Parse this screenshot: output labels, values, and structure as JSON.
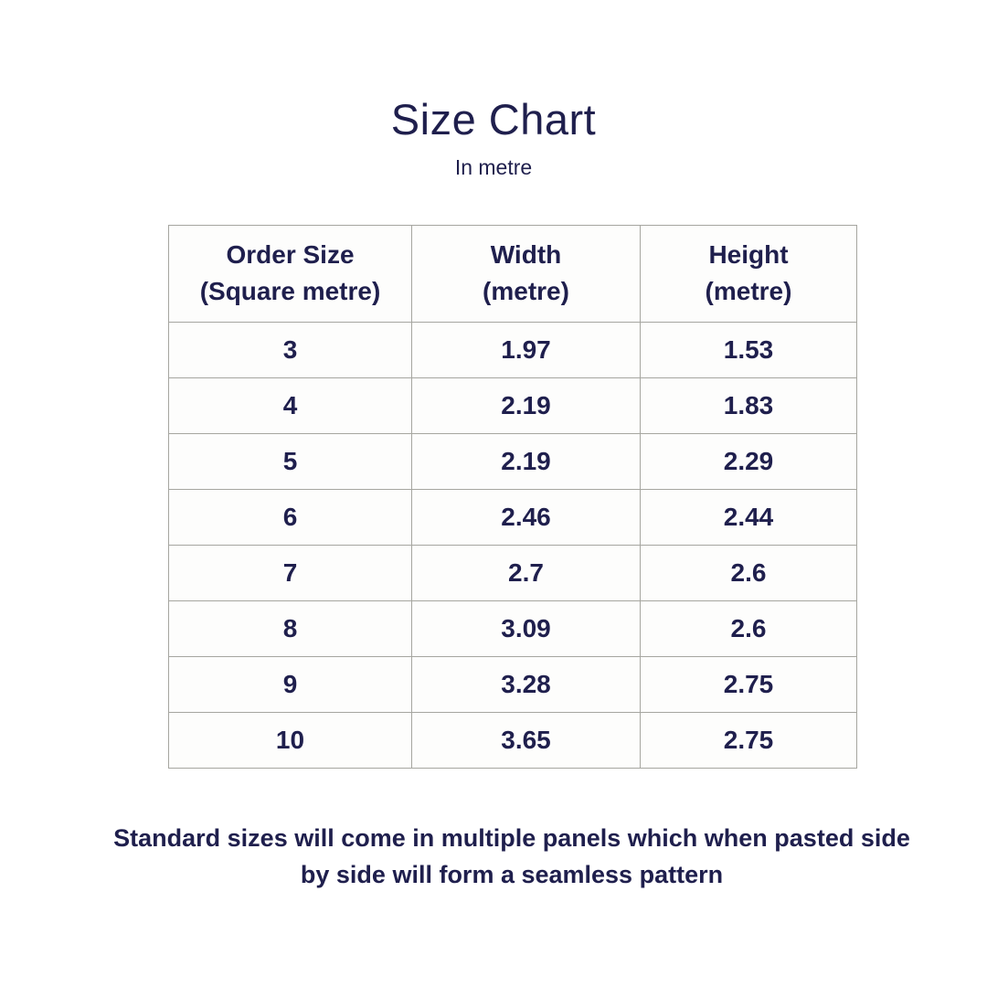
{
  "title": "Size Chart",
  "subtitle": "In metre",
  "colors": {
    "text": "#1f1f4d",
    "border": "#a6a6a0",
    "background": "#ffffff"
  },
  "chart_data": {
    "type": "table",
    "title": "Size Chart",
    "unit_note": "In metre",
    "columns": [
      {
        "label": "Order Size",
        "sublabel": "(Square metre)"
      },
      {
        "label": "Width",
        "sublabel": "(metre)"
      },
      {
        "label": "Height",
        "sublabel": "(metre)"
      }
    ],
    "rows": [
      [
        "3",
        "1.97",
        "1.53"
      ],
      [
        "4",
        "2.19",
        "1.83"
      ],
      [
        "5",
        "2.19",
        "2.29"
      ],
      [
        "6",
        "2.46",
        "2.44"
      ],
      [
        "7",
        "2.7",
        "2.6"
      ],
      [
        "8",
        "3.09",
        "2.6"
      ],
      [
        "9",
        "3.28",
        "2.75"
      ],
      [
        "10",
        "3.65",
        "2.75"
      ]
    ]
  },
  "footer_note": "Standard sizes  will come in multiple panels which when pasted side by side will form a seamless pattern"
}
